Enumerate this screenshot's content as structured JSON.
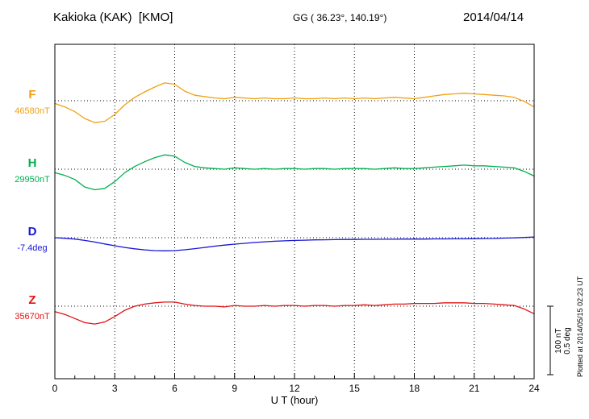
{
  "header": {
    "station_title": "Kakioka (KAK)  [KMO]",
    "coordinates": "GG ( 36.23°, 140.19°)",
    "date": "2014/04/14"
  },
  "xaxis": {
    "label": "U T (hour)",
    "min": 0,
    "max": 24,
    "ticks": [
      0,
      3,
      6,
      9,
      12,
      15,
      18,
      21,
      24
    ]
  },
  "scalebar": {
    "nt_label": "100 nT",
    "deg_label": "0.5 deg"
  },
  "plotted_note": "Plotted at 2014/05/15 02:23 UT",
  "chart_data": {
    "type": "line",
    "title": "Kakioka (KAK) [KMO] magnetogram 2014/04/14",
    "x_unit": "hour (UT)",
    "x_start": 0,
    "x_step": 0.5,
    "x_range": [
      0,
      24
    ],
    "grid": "dotted vertical lines every 3 hours; dotted horizontal baseline per trace",
    "scale_per_division": {
      "nT": 100,
      "deg": 0.5
    },
    "series": [
      {
        "name": "F",
        "label": "F",
        "unit": "nT",
        "baseline_value": 46580,
        "baseline_label": "46580nT",
        "color": "#f0a010",
        "offsets": [
          -4,
          -9,
          -16,
          -26,
          -32,
          -30,
          -20,
          -6,
          5,
          13,
          20,
          26,
          24,
          14,
          8,
          6,
          4,
          3,
          5,
          4,
          3,
          4,
          3,
          3,
          4,
          3,
          3,
          4,
          3,
          4,
          3,
          4,
          3,
          4,
          5,
          4,
          3,
          5,
          7,
          9,
          10,
          11,
          10,
          9,
          8,
          7,
          5,
          -1,
          -9
        ]
      },
      {
        "name": "H",
        "label": "H",
        "unit": "nT",
        "baseline_value": 29950,
        "baseline_label": "29950nT",
        "color": "#00b050",
        "offsets": [
          -5,
          -9,
          -15,
          -26,
          -30,
          -28,
          -18,
          -5,
          4,
          11,
          17,
          21,
          19,
          10,
          4,
          2,
          1,
          0,
          2,
          1,
          0,
          1,
          0,
          1,
          1,
          0,
          1,
          1,
          0,
          1,
          1,
          1,
          0,
          1,
          2,
          1,
          1,
          2,
          3,
          4,
          5,
          6,
          5,
          5,
          4,
          3,
          2,
          -3,
          -10
        ]
      },
      {
        "name": "D",
        "label": "D",
        "unit": "deg",
        "baseline_value": -7.4,
        "baseline_label": "-7.4deg",
        "color": "#1515d6",
        "offsets": [
          0.0,
          -0.004,
          -0.01,
          -0.02,
          -0.032,
          -0.046,
          -0.059,
          -0.071,
          -0.081,
          -0.089,
          -0.094,
          -0.096,
          -0.094,
          -0.088,
          -0.08,
          -0.071,
          -0.062,
          -0.054,
          -0.047,
          -0.041,
          -0.035,
          -0.03,
          -0.026,
          -0.023,
          -0.02,
          -0.018,
          -0.016,
          -0.015,
          -0.014,
          -0.013,
          -0.013,
          -0.012,
          -0.012,
          -0.011,
          -0.011,
          -0.01,
          -0.01,
          -0.01,
          -0.009,
          -0.009,
          -0.008,
          -0.008,
          -0.007,
          -0.006,
          -0.005,
          -0.003,
          -0.001,
          0.002,
          0.005
        ]
      },
      {
        "name": "Z",
        "label": "Z",
        "unit": "nT",
        "baseline_value": 35670,
        "baseline_label": "35670nT",
        "color": "#e31212",
        "offsets": [
          -8,
          -12,
          -18,
          -24,
          -26,
          -23,
          -15,
          -6,
          0,
          3,
          5,
          6,
          6,
          3,
          1,
          0,
          0,
          -1,
          1,
          0,
          0,
          1,
          0,
          1,
          1,
          0,
          1,
          1,
          0,
          1,
          1,
          2,
          1,
          2,
          3,
          3,
          4,
          4,
          4,
          5,
          5,
          5,
          4,
          4,
          3,
          2,
          1,
          -4,
          -11
        ]
      }
    ]
  }
}
